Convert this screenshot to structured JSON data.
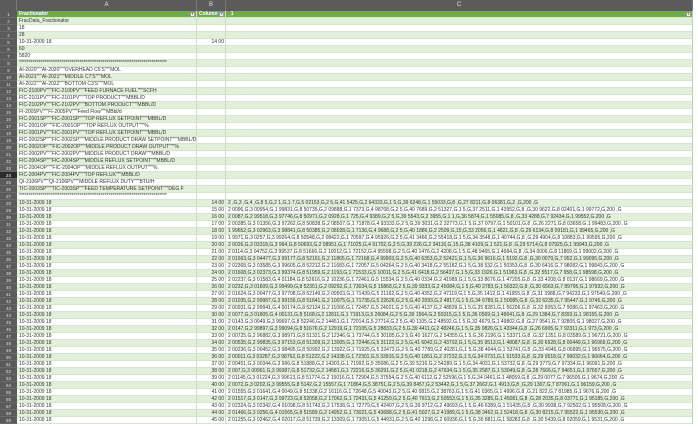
{
  "columns": [
    "A",
    "B",
    "C"
  ],
  "selected_row": 24,
  "colors": {
    "header_green": "#70ad47",
    "band_green": "#e2efda",
    "row_header": "#5b5b5b"
  },
  "header_row": {
    "a": "Fractionator",
    "b": "Column",
    "c": "_1",
    "filter_icon": "dropdown-arrow"
  },
  "rows": [
    [
      "FracData_Fractionator",
      "",
      ""
    ],
    [
      "18",
      "",
      ""
    ],
    [
      "28",
      "",
      ""
    ],
    [
      "10-31-2009 18",
      "14 00",
      ""
    ],
    [
      "60",
      "",
      ""
    ],
    [
      "5820",
      "",
      ""
    ],
    [
      "****************************************************************************",
      "",
      ""
    ],
    [
      "AI-2020\"\"\"AI-2020\"\"\"OVERHEAD C5'S\"\"\"MOL",
      "",
      ""
    ],
    [
      "AI-2021\"\"\"AI-2021\"\"\"MIDDLE C7'S\"\"\"MOL",
      "",
      ""
    ],
    [
      "AI-2022\"\"\"AI-2022\"\"\"BOTTOM C3'S\"\"\"MOL",
      "",
      ""
    ],
    [
      "FIC-2100PV\"\"\"FIC-2100PV\"\"\"FEED FURNACE FUEL\"\"\"SCFH",
      "",
      ""
    ],
    [
      "FIC-2101PV\"\"\"FIC-2101PV\"\"\"TOP PRODUCT\"\"\"MBBL/D",
      "",
      ""
    ],
    [
      "FIC-2102PV\"\"\"FIC-2102PV\"\"\"BOTTOM PRODUCT\"\"\"MBBL/D",
      "",
      ""
    ],
    [
      "FI-2005PV\"\"\"FI-2005PV\"\"\"Feed Flow\"\"\"MBbl/d",
      "",
      ""
    ],
    [
      "FIC-2001SP\"\"\"FIC-2001SP\"\"\"TOP REFLUX SETPOINT\"\"\"MBBL/D",
      "",
      ""
    ],
    [
      "FIC-2001OP\"\"\"FIC-2001OP\"\"\"TOP REFLUX OUTPUT\"\"\"%",
      "",
      ""
    ],
    [
      "FIC-2001PV\"\"\"FIC-2001PV\"\"\"TOP REFLUX SETPOINT\"\"\"MBBL/D",
      "",
      ""
    ],
    [
      "FIC-2002SP\"\"\"FIC-2002SP\"\"\"MIDDLE PRODUCT DRAW SETPOINT\"\"\"MBBL/D",
      "",
      ""
    ],
    [
      "FIC-2002OP\"\"\"FIC-2002OP\"\"\"MIDDLE PRODUCT DRAW OUTPUT\"\"\"%",
      "",
      ""
    ],
    [
      "FIC-2002PV\"\"\"FIC-2002PV\"\"\"MIDDLE PRODUCT DRAW\"\"\"MBBL/D",
      "",
      ""
    ],
    [
      "FIC-2004SP\"\"\"FIC-2004SP\"\"\"MIDDLE REFLUX SETPOINT\"\"\"MBBL/D",
      "",
      ""
    ],
    [
      "FIC-2004OP\"\"\"FIC-2004OP\"\"\"MIDDLE REFLUX OUTPUT\"\"\"%",
      "",
      ""
    ],
    [
      "FIC-2004PV\"\"\"FIC-2004PV\"\"\"TOP REFLUX\"\"\"MBBL/D",
      "",
      ""
    ],
    [
      "QI-2106PV\"\"\"QI-2106PV\"\"\"MIDDLE REFLUX DUTY\"\"\"BTU/H",
      "",
      ""
    ],
    [
      "TIC-2003SP\"\"\"TIC-2003SP\"\"\"FEED TEMPERATURE SETPOINT\"\"\"DEG F",
      "",
      ""
    ],
    [
      "****************************************************************************",
      "",
      ""
    ],
    [
      "10-31-2009 18",
      "14 00",
      "2 ,G,3 ,G,4 ,G,8 5,G,2 1,G,1 7,G,5 02153,G,2 5,G,41 5425,G,2 64333,G,1 5,G,39 6248,G,1 55033,G,8 ,G,27 8211,G,8 06381,G,2 ,G,200 ,G"
    ],
    [
      "10-31-2009 18",
      "15 00",
      "2 0096,G,3 00954,G,1 99831,G,8 50735,G,2 09888,G,1 7373,G,4 98768,G,2 5,G,40 7689,G,2 51327,G,1 5,G,37 2511,G,1 43952,G,8 ,G,30 9622,G,8 02401,G,1 99772,G,200 ,G"
    ],
    [
      "10-31-2009 18",
      "16 00",
      "2 0087,G,2 99518,G,3 97746,G,8 50971,G,2 0928,G,1 725,G,4 9389,G,2 5,G,39 5543,G,2 3955,G,1 1,G,36 5874,G,1 55085,G,8 ,G,33 4288,G,7 92434,G,1 99552,G,200 ,G"
    ],
    [
      "10-31-2009 18",
      "17 00",
      "2 00385,G,3 01356,G,3 97262,G,8 50838,G,2 08507,G,1 71878,G,4 93333,G,2 5,G,39 3031,G,2 32773,G,1 5,G,37 0797,G,1 50101,G,8 ,G,26 2271,G,8 03658,G,1 99483,G,200 ,G"
    ],
    [
      "10-31-2009 18",
      "18 00",
      "1 99652,G,3 02963,G,3 98841,G,8 50385,G,2 08028,G,1 7136,G,4 9688,G,2 5,G,40 1886,G,2 2509,G,15,G,33 2056,G,1 4821,G,8 ,G,29 6134,G,8 09181,G,1 99465,G,200 ,G"
    ],
    [
      "10-31-2009 18",
      "19 00",
      "1 9971,G,3 0257,G,3 99264,G,8 50548,G,2 08422,G,1 70597,G,4 95926,G,2 5,G,41 3466,G,2 55418,G,1 5,G,34 3548,G,1 40744,G,8 ,G,29 4904,G,8 10883,G,1 99595,G,200 ,G"
    ],
    [
      "10-31-2009 18",
      "20 00",
      "2 0026,G,3 03318,G,3 994,G,8 50693,G,2 08951,G,1 71025,G,4 91702,G,2 5,G,39 226,G,2 34116,G,15,G,38 4109,G,1 521,G,8 ,G,29 5714,G,8 07925,G,1 99943,G,200 ,G"
    ],
    [
      "10-31-2009 18",
      "21 00",
      "2 0114,G,3 04752,G,3 99537,G,8 51666,G,2 10012,G,1 72152,G,4 95598,G,2 5,G,40 1476,G,2 4208,G,1 5,G,48 9465,G,1 4984,G,8 ,G,34 0006,G,8 11869,G,1 99002,G,200 ,G"
    ],
    [
      "10-31-2009 18",
      "22 00",
      "2 01663,G,3 04477,G,3 99177,G,8 52161,G,2 11865,G,1 72168,G,4 99903,G,2 5,G,40 6353,G,2 52421,G,1 5,G,36 9616,G,1 5192,G,8 ,G,30 0079,G,7 952,G,1 99095,G,200 ,G"
    ],
    [
      "10-31-2009 18",
      "23 00",
      "2 02368,G,3 03585,G,3 99605,G,8 52212,G,2 11683,G,1 72057,G,5 04264,G,2 5,G,40 3418,G,2 55182,G,1 5,G,38 532,G,1 50353,G,8 ,G,30 6416,G,7 98082,G,1 99843,G,200 ,G"
    ],
    [
      "10-31-2009 18",
      "24 00",
      "2 01608,G,3 02373,G,3 99374,G,8 51959,G,2 1193,G,1 71533,G,5 10011,G,2 5,G,41 6418,G,2 56437,G,1 5,G,33 1926,G,1 51963,G,8 ,G,32 5517,G,7 958,G,1 98598,G,200 ,G"
    ],
    [
      "10-31-2009 18",
      "25 00",
      "2 02237,G,3 01583,G,4 01184,G,8 52616,G,2 10236,G,1 72461,G,5 15534,G,2 5,G,40 0334,G,2 41989,G,1 5,G,33 8676,G,1 47205,G,8 ,G,33 4208,G,8 0137,G,1 98669,G,200 ,G"
    ],
    [
      "10-31-2009 18",
      "26 00",
      "2 0232,G,3 01609,G,3 99499,G,8 52351,G,2 09292,G,1 73034,G,5 15868,G,2 5,G,39 9333,G,2 45084,G,1 5,G,40 2783,G,1 56322,G,8 ,G,30 6563,G,7 89795,G,1 97932,G,200 ,G"
    ],
    [
      "10-31-2009 18",
      "27 00",
      "2 01624,G,3 00477,G,3 97708,G,8 52149,G,2 09503,G,1 71439,G,5 21162,G,2 5,G,40 4352,G,2 47119,G,1 5,G,35 1412,G,1 41955,G,8 ,G,31 3988,G,7 94233,G,1 97549,G,200 ,G"
    ],
    [
      "10-31-2009 18",
      "28 00",
      "2 01035,G,2 99987,G,3 99156,G,8 51641,G,2 10075,G,1 71735,G,5 22626,G,2 5,G,40 2093,G,2 4817,G,1 5,G,34 6789,G,1 50085,G,8 ,G,32 6235,G,7 95447,G,1 9745,G,200 ,G"
    ],
    [
      "10-31-2009 18",
      "29 00",
      "2 00931,G,2 99941,G,4 00174,G,8 52134,G,2 11066,G,1 72457,G,5 24021,G,2 5,G,40 4137,G,2 48839,G,1 5,G,35 8281,G,1 56206,G,8 ,G,32 8053,G,7 9086,G,1 97463,G,200 ,G"
    ],
    [
      "10-31-2009 18",
      "30 00",
      "2 0077,G,3 01805,G,4 00131,G,8 5168,G,2 12811,G,1 71913,G,5 26084,G,2 5,G,39 1564,G,2 50315,G,1 5,G,36 0569,G,1 49041,G,8 ,G,29 1384,G,7 8393,G,1 98155,G,200 ,G"
    ],
    [
      "10-31-2009 18",
      "31 00",
      "2 0143,G,3 0049,G,3 99697,G,8 52246,G,2 14451,G,1 72014,G,5 27714,G,2 5,G,40 1105,G,2 48592,G,1 5,G,32 4679,G,1 49802,G,8 ,G,27 9541,G,7 92805,G,1 98027,G,200 ,G"
    ],
    [
      "10-31-2009 18",
      "32 00",
      "2 0147,G,2 99897,G,3 99094,G,8 51676,G,2 12919,G,1 72105,G,5 28833,G,2 5,G,39 4411,G,2 48246,G,1 5,G,35 0826,G,1 43344,G,8 ,G,26 6905,G,7 92311,G,1 973,G,200 ,G"
    ],
    [
      "10-31-2009 18",
      "33 00",
      "2 00725,G,2 96882,G,3 98971,G,8 51321,G,2 12346,G,1 73744,G,5 30185,G,2 5,G,40 1627,G,2 54355,G,1 5,G,36 2196,G,1 53371,G,8 ,G,32 1351,G,8 03589,G,1 96721,G,200 ,G"
    ],
    [
      "10-31-2009 18",
      "34 00",
      "2 00535,G,2 99835,G,3 97153,G,8 51309,G,2 13005,G,1 72446,G,5 31122,G,2 5,G,41 6042,G,2 43702,G,1 5,G,35 9513,G,1 48087,G,8 ,G,30 6528,G,8 00449,G,1 96969,G,200 ,G"
    ],
    [
      "10-31-2009 18",
      "35 00",
      "2 00236,G,3 00452,G,3 98495,G,8 50992,G,2 13922,G,1 71925,G,5 32473,G,2 5,G,40 7789,G,2 40281,G,1 5,G,38 4044,G,1 53741,G,8 ,G,33 4946,G,8 06895,G,1 96575,G,200 ,G"
    ],
    [
      "10-31-2009 18",
      "36 00",
      "2 00011,G,3 03287,G,3 98762,G,8 51222,G,2 14338,G,1 72301,G,5 33916,G,2 5,G,40 1851,G,2 37232,G,1 5,G,34 0731,G,1 51533,G,8 ,G,29 9518,G,7 99032,G,1 96664,G,200 ,G"
    ],
    [
      "10-31-2009 18",
      "37 00",
      "2 00451,G,3 00344,G,3 996,G,8 51888,G,2 14303,G,1 71992,G,5 35086,G,2 5,G,39 5216,G,2 54289,G,1 5,G,34 4031,G,1 53732,G,8 ,G,29 3779,G,7 97334,G,1 96091,G,200 ,G"
    ],
    [
      "10-31-2009 18",
      "38 00",
      "2 007,G,3 00961,G,3 99387,G,8 51732,G,2 14581,G,1 72216,G,5 36291,G,2 5,G,41 0218,G,2 47634,G,1 5,G,35 2587,G,1 53049,G,8 ,G,28 7666,G,7 94651,G,1 97657,G,200 ,G"
    ],
    [
      "10-31-2009 18",
      "39 00",
      "2 01145,G,3 01224,G,3 99613,G,8 51774,G,2 15016,G,1 72904,G,5 37554,G,2 5,G,40 6112,G,2 52596,G,1 5,G,34 0461,G,1 48059,G,8 ,G,29 0077,G,7 96505,G,1 9674,G,200 ,G"
    ],
    [
      "10-31-2009 18",
      "40 00",
      "2 0072,G,3 0202,G,3 99555,G,8 5142,G,2 15557,G,1 71864,G,5 38751,G,2 5,G,39 8457,G,2 53442,G,1 5,G,37 2662,G,1 4913,G,8 ,G,29 1307,G,7 87061,G,1 96159,G,200 ,G"
    ],
    [
      "10-31-2009 18",
      "41 00",
      "2 01555,G,3 01641,G,4 0049,G,8 51338,G,2 16116,G,1 72648,G,5 40043,G,2 5,G,40 0815,G,2 38763,G,1 5,G,41 0365,G,1 4996,G,8 ,G,21 822,G,7 81985,G,1 9676,G,200 ,G"
    ],
    [
      "10-31-2009 18",
      "42 00",
      "2 01517,G,3 0147,G,3 99723,G,8 52058,G,2 17062,G,1 72431,G,5 41259,G,2 5,G,40 7613,G,2 50553,G,1 5,G,35 3285,G,1 45081,G,8 ,G,28 2035,G,8 03771,G,1 95185,G,200 ,G"
    ],
    [
      "10-31-2009 18",
      "43 00",
      "2 02324,G,3 02342,G,4 01098,G,8 51743,G,2 17538,G,1 72779,G,5 42407,G,2 5,G,39 9712,G,2 49693,G,1 5,G,46 6389,G,1 51435,G,8 ,G,30 9938,G,7 92502,G,1 95508,G,200 ,G"
    ],
    [
      "10-31-2009 18",
      "44 00",
      "2 01466,G,3 0256,G,4 01565,G,8 51589,G,2 14952,G,1 73021,G,5 43688,G,2 5,G,41 5027,G,2 41989,G,1 5,G,38 3462,G,1 52418,G,8 ,G,30 8215,G,7 95522,G,1 95530,G,200 ,G"
    ],
    [
      "10-31-2009 18",
      "45 00",
      "2 01255,G,3 02462,G,4 02017,G,8 51739,G,2 13309,G,1 73051,G,5 44931,G,2 5,G,40 1298,G,2 60936,G,1 5,G,36 8811,G,1 58283,G,8 ,G,30 5439,G,8 02059,G,1 9531,G,200 ,G"
    ]
  ]
}
